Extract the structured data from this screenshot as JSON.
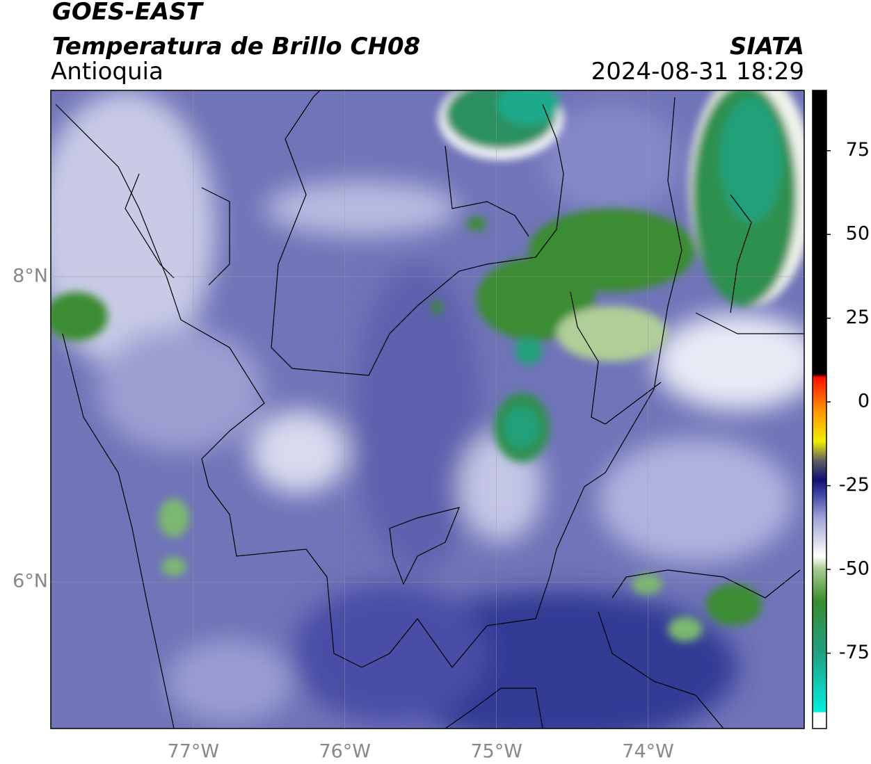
{
  "header": {
    "title": "GOES-EAST",
    "subtitle": "Temperatura de Brillo CH08",
    "region": "Antioquia",
    "source": "SIATA",
    "datetime": "2024-08-31 18:29"
  },
  "map": {
    "xlim": [
      -77.94,
      -72.97
    ],
    "ylim": [
      5.04,
      9.22
    ],
    "xticks": [
      {
        "value": -77,
        "label": "77°W"
      },
      {
        "value": -76,
        "label": "76°W"
      },
      {
        "value": -75,
        "label": "75°W"
      },
      {
        "value": -74,
        "label": "74°W"
      }
    ],
    "yticks": [
      {
        "value": 8,
        "label": "8°N"
      },
      {
        "value": 6,
        "label": "6°N"
      }
    ]
  },
  "colorbar": {
    "lim": [
      -97.5,
      93
    ],
    "ticks": [
      75,
      50,
      25,
      0,
      -25,
      -50,
      -75
    ]
  }
}
